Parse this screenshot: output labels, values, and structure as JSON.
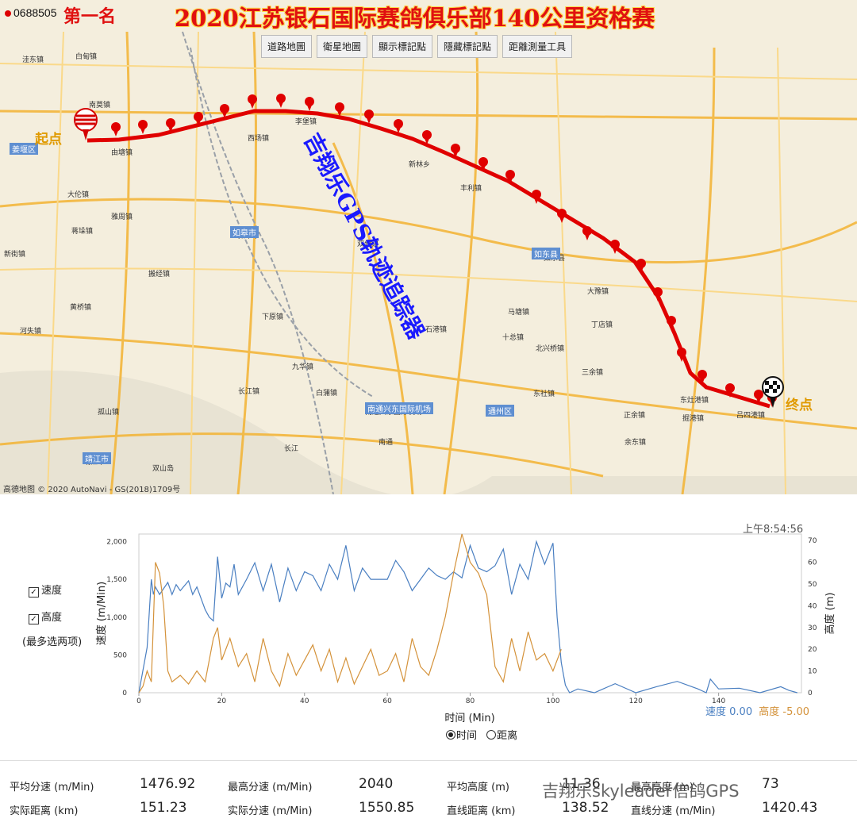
{
  "header": {
    "pigeon_id": "0688505",
    "rank": "第一名",
    "title": "2020江苏银石国际赛鸽俱乐部140公里资格赛"
  },
  "map": {
    "buttons": [
      "道路地圖",
      "衛星地圖",
      "顯示標記點",
      "隱藏標記點",
      "距離測量工具"
    ],
    "start_label": "起点",
    "end_label": "终点",
    "watermark": "吉翔乐GPS轨迹追踪器",
    "footer": "高德地图 © 2020 AutoNavi - GS(2018)1709号",
    "route_color": "#e00000",
    "places": [
      "洼东镇",
      "白甸镇",
      "南莫镇",
      "由塘镇",
      "西场镇",
      "李堡镇",
      "新林乡",
      "丰利镇",
      "大伦镇",
      "雅周镇",
      "蒋垛镇",
      "新街镇",
      "如皋市",
      "搬经镇",
      "下原镇",
      "双甸镇",
      "石港镇",
      "如东县",
      "大豫镇",
      "丁店镇",
      "十总镇",
      "北兴桥镇",
      "三余镇",
      "东社镇",
      "黄桥镇",
      "河失镇",
      "白蒲镇",
      "九华镇",
      "长江镇",
      "南通兴东国际机场",
      "正余镇",
      "余东镇",
      "孤山镇",
      "靖江市",
      "双山岛",
      "南通",
      "长江",
      "东灶港镇",
      "吕四港镇",
      "马塘镇",
      "掘港镇"
    ],
    "cities": [
      "姜堰区",
      "如皋市",
      "如东县",
      "靖江市",
      "南通兴东国际机场",
      "通州区"
    ]
  },
  "chart": {
    "timestamp": "上午8:54:56",
    "legend": {
      "speed": "速度",
      "altitude": "高度",
      "note": "(最多选两项)"
    },
    "xlabel": "时间 (Min)",
    "ylabel_left": "速度 (m/Min)",
    "ylabel_right": "高度 (m)",
    "x_ticks": [
      "0",
      "20",
      "40",
      "60",
      "80",
      "100",
      "120",
      "140"
    ],
    "y_left_ticks": [
      "0",
      "500",
      "1,000",
      "1,500",
      "2,000"
    ],
    "y_right_ticks": [
      "0",
      "10",
      "20",
      "30",
      "40",
      "50",
      "60",
      "70"
    ],
    "readout_speed_label": "速度",
    "readout_speed": "0.00",
    "readout_alt_label": "高度",
    "readout_alt": "-5.00",
    "radio_time": "时间",
    "radio_distance": "距离",
    "speed_color": "#4a7fc1",
    "alt_color": "#d4923a"
  },
  "chart_data": {
    "type": "line",
    "xlabel": "时间 (Min)",
    "ylabel": "速度 (m/Min)",
    "xlim": [
      0,
      160
    ],
    "ylim": [
      0,
      2100
    ],
    "ylim_right": [
      0,
      73
    ],
    "series": [
      {
        "name": "速度",
        "axis": "left",
        "x": [
          0,
          2,
          3,
          3.5,
          4,
          5,
          7,
          8,
          9,
          10,
          12,
          13,
          14,
          16,
          17,
          18,
          19,
          20,
          21,
          22,
          23,
          24,
          25,
          26,
          28,
          30,
          32,
          34,
          36,
          38,
          40,
          42,
          44,
          46,
          48,
          50,
          52,
          54,
          56,
          58,
          60,
          62,
          64,
          66,
          68,
          70,
          72,
          74,
          76,
          78,
          80,
          82,
          84,
          86,
          88,
          90,
          92,
          94,
          96,
          98,
          100,
          101,
          102,
          103,
          104,
          106,
          110,
          115,
          120,
          125,
          130,
          135,
          137,
          138,
          140,
          145,
          150,
          155,
          157,
          159
        ],
        "values": [
          0,
          600,
          1500,
          1300,
          1400,
          1300,
          1460,
          1300,
          1430,
          1350,
          1480,
          1300,
          1400,
          1100,
          1000,
          950,
          1800,
          1250,
          1450,
          1400,
          1700,
          1300,
          1400,
          1500,
          1720,
          1350,
          1700,
          1200,
          1650,
          1350,
          1600,
          1550,
          1350,
          1700,
          1500,
          1950,
          1350,
          1650,
          1500,
          1500,
          1500,
          1750,
          1600,
          1350,
          1500,
          1650,
          1550,
          1500,
          1600,
          1520,
          1950,
          1650,
          1600,
          1680,
          1900,
          1300,
          1700,
          1500,
          2000,
          1700,
          1980,
          1000,
          400,
          100,
          0,
          50,
          0,
          120,
          0,
          80,
          150,
          50,
          0,
          180,
          50,
          60,
          0,
          80,
          30,
          0
        ]
      },
      {
        "name": "高度",
        "axis": "right",
        "x": [
          0,
          1,
          2,
          3,
          4,
          5,
          6,
          7,
          8,
          10,
          12,
          14,
          16,
          18,
          19,
          20,
          22,
          24,
          26,
          28,
          30,
          32,
          34,
          36,
          38,
          40,
          42,
          44,
          46,
          48,
          50,
          52,
          54,
          56,
          58,
          60,
          62,
          64,
          66,
          68,
          70,
          72,
          74,
          76,
          78,
          80,
          82,
          84,
          86,
          88,
          90,
          92,
          94,
          96,
          98,
          100,
          102
        ],
        "values": [
          0,
          3,
          10,
          5,
          60,
          55,
          40,
          10,
          5,
          8,
          4,
          10,
          5,
          25,
          30,
          15,
          25,
          12,
          18,
          5,
          25,
          10,
          3,
          18,
          8,
          15,
          22,
          10,
          20,
          5,
          16,
          4,
          12,
          20,
          8,
          10,
          18,
          5,
          25,
          12,
          8,
          20,
          35,
          55,
          73,
          60,
          55,
          45,
          12,
          5,
          25,
          10,
          28,
          15,
          18,
          10,
          20
        ]
      }
    ]
  },
  "stats": {
    "rows": [
      [
        {
          "label": "平均分速 (m/Min)",
          "value": "1476.92"
        },
        {
          "label": "最高分速 (m/Min)",
          "value": "2040"
        },
        {
          "label": "平均高度 (m)",
          "value": "11.36"
        },
        {
          "label": "最高高度 (m)",
          "value": "73"
        }
      ],
      [
        {
          "label": "实际距离 (km)",
          "value": "151.23"
        },
        {
          "label": "实际分速 (m/Min)",
          "value": "1550.85"
        },
        {
          "label": "直线距离 (km)",
          "value": "138.52"
        },
        {
          "label": "直线分速 (m/Min)",
          "value": "1420.43"
        }
      ]
    ],
    "brand": "吉翔乐skyleader信鸽GPS"
  }
}
